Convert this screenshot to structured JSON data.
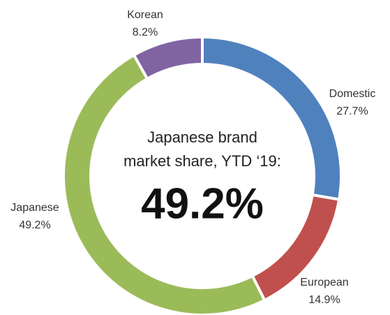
{
  "chart_data": {
    "type": "pie",
    "donut": true,
    "center_text": [
      "Japanese brand",
      "market share, YTD ‘19:"
    ],
    "center_value": "49.2%",
    "categories": [
      "Domestic",
      "European",
      "Japanese",
      "Korean"
    ],
    "values": [
      27.7,
      14.9,
      49.2,
      8.2
    ],
    "value_labels": [
      "27.7%",
      "14.9%",
      "49.2%",
      "8.2%"
    ],
    "colors": [
      "#4f81bd",
      "#c0504d",
      "#9bbb59",
      "#8064a2"
    ]
  }
}
